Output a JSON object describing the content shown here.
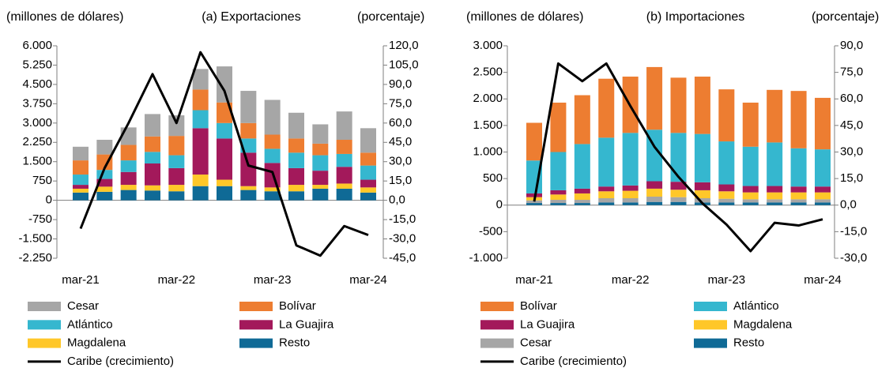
{
  "chart_data": [
    {
      "type": "bar",
      "stacked": true,
      "title": "(a) Exportaciones",
      "ylabel": "(millones de dólares)",
      "y2label": "(porcentaje)",
      "categories": [
        "mar-21",
        null,
        null,
        null,
        "mar-22",
        null,
        null,
        null,
        "mar-23",
        null,
        null,
        null,
        "mar-24"
      ],
      "ylim": [
        -2250,
        6000
      ],
      "yticks": [
        {
          "value": 6000,
          "label": "6.000"
        },
        {
          "value": 5250,
          "label": "5.250"
        },
        {
          "value": 4500,
          "label": "4.500"
        },
        {
          "value": 3750,
          "label": "3.750"
        },
        {
          "value": 3000,
          "label": "3.000"
        },
        {
          "value": 2250,
          "label": "2.250"
        },
        {
          "value": 1500,
          "label": "1.500"
        },
        750,
        0,
        -750,
        {
          "value": -1500,
          "label": "-1.500"
        },
        {
          "value": -2250,
          "label": "-2.250"
        }
      ],
      "y2lim": [
        -45,
        120
      ],
      "y2ticks": [
        {
          "value": 120,
          "label": "120,0"
        },
        {
          "value": 105,
          "label": "105,0"
        },
        {
          "value": 90,
          "label": "90,0"
        },
        {
          "value": 75,
          "label": "75,0"
        },
        {
          "value": 60,
          "label": "60,0"
        },
        {
          "value": 45,
          "label": "45,0"
        },
        {
          "value": 30,
          "label": "30,0"
        },
        {
          "value": 15,
          "label": "15,0"
        },
        {
          "value": 0,
          "label": "0,0"
        },
        {
          "value": -15,
          "label": "-15,0"
        },
        {
          "value": -30,
          "label": "-30,0"
        },
        {
          "value": -45,
          "label": "-45,0"
        }
      ],
      "series": [
        {
          "name": "Cesar",
          "color": "#a6a6a6",
          "values": [
            530,
            570,
            680,
            870,
            800,
            800,
            1400,
            1250,
            1350,
            1000,
            750,
            1100,
            950
          ]
        },
        {
          "name": "Bolívar",
          "color": "#ed7d31",
          "values": [
            550,
            600,
            600,
            600,
            750,
            800,
            800,
            600,
            550,
            550,
            450,
            550,
            500
          ]
        },
        {
          "name": "Atlántico",
          "color": "#35b7cf",
          "values": [
            400,
            350,
            450,
            450,
            500,
            700,
            600,
            550,
            550,
            600,
            600,
            500,
            550
          ]
        },
        {
          "name": "La Guajira",
          "color": "#a3195b",
          "values": [
            150,
            300,
            500,
            850,
            650,
            1800,
            1600,
            1300,
            950,
            650,
            550,
            650,
            300
          ]
        },
        {
          "name": "Magdalena",
          "color": "#ffc729",
          "values": [
            150,
            200,
            200,
            200,
            250,
            450,
            250,
            150,
            150,
            250,
            150,
            200,
            200
          ]
        },
        {
          "name": "Resto",
          "color": "#0f6a96",
          "values": [
            300,
            330,
            400,
            380,
            350,
            550,
            550,
            400,
            350,
            350,
            450,
            450,
            300
          ]
        },
        {
          "name": "Caribe (crecimiento)",
          "color": "#000000",
          "type": "line",
          "axis": "y2",
          "values": [
            -22,
            25,
            60,
            98,
            60,
            115,
            85,
            27,
            22,
            -35,
            -43,
            -20,
            -27
          ]
        }
      ]
    },
    {
      "type": "bar",
      "stacked": true,
      "title": "(b) Importaciones",
      "ylabel": "(millones de dólares)",
      "y2label": "(porcentaje)",
      "categories": [
        "mar-21",
        null,
        null,
        null,
        "mar-22",
        null,
        null,
        null,
        "mar-23",
        null,
        null,
        null,
        "mar-24"
      ],
      "ylim": [
        -1000,
        3000
      ],
      "yticks": [
        {
          "value": 3000,
          "label": "3.000"
        },
        {
          "value": 2500,
          "label": "2.500"
        },
        {
          "value": 2000,
          "label": "2.000"
        },
        {
          "value": 1500,
          "label": "1.500"
        },
        {
          "value": 1000,
          "label": "1.000"
        },
        500,
        0,
        -500,
        {
          "value": -1000,
          "label": "-1.000"
        }
      ],
      "y2lim": [
        -30,
        90
      ],
      "y2ticks": [
        {
          "value": 90,
          "label": "90,0"
        },
        {
          "value": 75,
          "label": "75,0"
        },
        {
          "value": 60,
          "label": "60,0"
        },
        {
          "value": 45,
          "label": "45,0"
        },
        {
          "value": 30,
          "label": "30,0"
        },
        {
          "value": 15,
          "label": "15,0"
        },
        {
          "value": 0,
          "label": "0,0"
        },
        {
          "value": -15,
          "label": "-15,0"
        },
        {
          "value": -30,
          "label": "-30,0"
        }
      ],
      "series": [
        {
          "name": "Bolívar",
          "color": "#ed7d31",
          "values": [
            710,
            930,
            920,
            1110,
            1060,
            1180,
            1040,
            1080,
            980,
            830,
            990,
            1080,
            970
          ]
        },
        {
          "name": "Atlántico",
          "color": "#35b7cf",
          "values": [
            620,
            720,
            840,
            920,
            990,
            970,
            920,
            910,
            810,
            740,
            820,
            720,
            700
          ]
        },
        {
          "name": "La Guajira",
          "color": "#a3195b",
          "values": [
            70,
            80,
            90,
            90,
            100,
            140,
            150,
            150,
            130,
            120,
            120,
            110,
            110
          ]
        },
        {
          "name": "Magdalena",
          "color": "#ffc729",
          "values": [
            60,
            100,
            120,
            130,
            140,
            150,
            140,
            150,
            140,
            130,
            130,
            130,
            130
          ]
        },
        {
          "name": "Cesar",
          "color": "#a6a6a6",
          "values": [
            50,
            60,
            60,
            80,
            80,
            100,
            90,
            80,
            70,
            60,
            60,
            60,
            60
          ]
        },
        {
          "name": "Resto",
          "color": "#0f6a96",
          "values": [
            40,
            40,
            40,
            50,
            50,
            60,
            60,
            50,
            50,
            50,
            50,
            50,
            50
          ]
        },
        {
          "name": "Caribe (crecimiento)",
          "color": "#000000",
          "type": "line",
          "axis": "y2",
          "values": [
            2,
            80,
            70,
            80,
            56,
            33,
            16,
            1,
            -11,
            -26,
            -10,
            -11.5,
            -8
          ]
        }
      ]
    }
  ]
}
